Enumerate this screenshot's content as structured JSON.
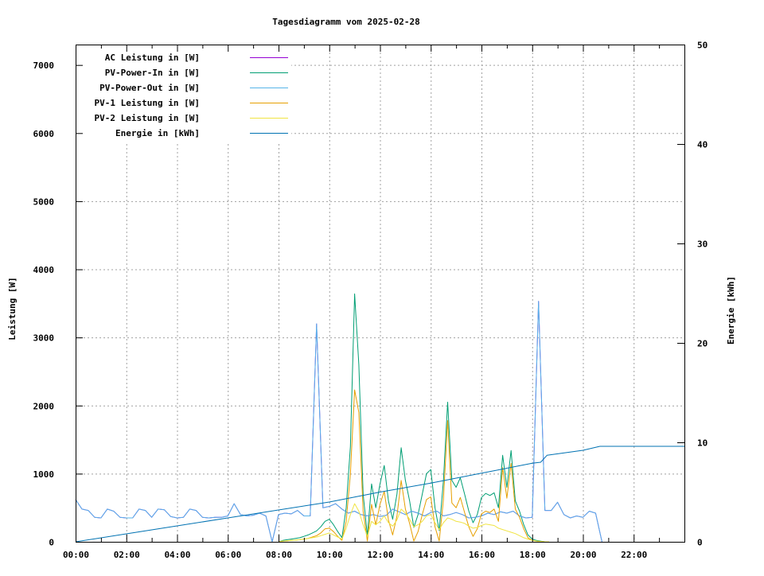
{
  "chart_data": {
    "type": "line",
    "title": "Tagesdiagramm vom 2025-02-28",
    "ylabel": "Leistung [W]",
    "y2label": "Energie [kWh]",
    "xlim": [
      "00:00",
      "24:00"
    ],
    "ylim": [
      0,
      7300
    ],
    "y2lim": [
      0,
      50
    ],
    "grid": true,
    "legend_placement": "top-left",
    "x_ticks": [
      "00:00",
      "02:00",
      "04:00",
      "06:00",
      "08:00",
      "10:00",
      "12:00",
      "14:00",
      "16:00",
      "18:00",
      "20:00",
      "22:00"
    ],
    "y_ticks": [
      0,
      1000,
      2000,
      3000,
      4000,
      5000,
      6000,
      7000
    ],
    "y2_ticks": [
      0,
      10,
      20,
      30,
      40,
      50
    ],
    "x_quarter": [
      "00:00",
      "00:15",
      "00:30",
      "00:45",
      "01:00",
      "01:15",
      "01:30",
      "01:45",
      "02:00",
      "02:15",
      "02:30",
      "02:45",
      "03:00",
      "03:15",
      "03:30",
      "03:45",
      "04:00",
      "04:15",
      "04:30",
      "04:45",
      "05:00",
      "05:15",
      "05:30",
      "05:45",
      "06:00",
      "06:15",
      "06:30",
      "06:45",
      "07:00",
      "07:15",
      "07:30",
      "07:45",
      "08:00",
      "08:15",
      "08:30",
      "08:45",
      "09:00",
      "09:15",
      "09:30",
      "09:45",
      "10:00",
      "10:15",
      "10:30",
      "10:45",
      "11:00",
      "11:15",
      "11:30",
      "11:45",
      "12:00",
      "12:15",
      "12:30",
      "12:45",
      "13:00",
      "13:15",
      "13:30",
      "13:45",
      "14:00",
      "14:15",
      "14:30",
      "14:45",
      "15:00",
      "15:15",
      "15:30",
      "15:45",
      "16:00",
      "16:15",
      "16:30",
      "16:45",
      "17:00",
      "17:15",
      "17:30",
      "17:45",
      "18:00",
      "18:15",
      "18:30",
      "18:45",
      "19:00",
      "19:15",
      "19:30",
      "19:45",
      "20:00",
      "20:15",
      "20:30",
      "20:45"
    ],
    "x_pv": [
      "08:00",
      "08:10",
      "08:20",
      "08:30",
      "08:40",
      "08:50",
      "09:00",
      "09:10",
      "09:20",
      "09:30",
      "09:40",
      "09:50",
      "10:00",
      "10:10",
      "10:20",
      "10:30",
      "10:40",
      "10:50",
      "11:00",
      "11:10",
      "11:20",
      "11:30",
      "11:40",
      "11:50",
      "12:00",
      "12:10",
      "12:20",
      "12:30",
      "12:40",
      "12:50",
      "13:00",
      "13:10",
      "13:20",
      "13:30",
      "13:40",
      "13:50",
      "14:00",
      "14:10",
      "14:20",
      "14:30",
      "14:40",
      "14:50",
      "15:00",
      "15:10",
      "15:20",
      "15:30",
      "15:40",
      "15:50",
      "16:00",
      "16:10",
      "16:20",
      "16:30",
      "16:40",
      "16:50",
      "17:00",
      "17:10",
      "17:20",
      "17:30",
      "17:40",
      "17:50",
      "18:00",
      "18:10",
      "18:20",
      "18:30",
      "18:40"
    ],
    "x_energy": [
      "00:00",
      "02:00",
      "04:00",
      "06:00",
      "08:00",
      "10:00",
      "12:00",
      "14:00",
      "16:00",
      "18:00",
      "18:20",
      "18:35",
      "20:00",
      "20:40",
      "24:00"
    ],
    "series": [
      {
        "name": "AC Leistung in [W]",
        "color": "#9400d3",
        "x_ref": "x_quarter",
        "axis": "y",
        "values": [
          620,
          480,
          460,
          360,
          350,
          480,
          450,
          360,
          350,
          350,
          480,
          460,
          360,
          480,
          470,
          370,
          350,
          360,
          480,
          460,
          360,
          350,
          360,
          360,
          380,
          560,
          400,
          380,
          390,
          420,
          380,
          0,
          400,
          420,
          410,
          460,
          380,
          380,
          3200,
          500,
          520,
          560,
          480,
          420,
          450,
          400,
          380,
          400,
          370,
          390,
          480,
          440,
          400,
          450,
          420,
          380,
          430,
          450,
          380,
          400,
          430,
          400,
          350,
          360,
          380,
          420,
          400,
          440,
          420,
          450,
          380,
          350,
          360,
          3530,
          460,
          460,
          580,
          400,
          350,
          380,
          360,
          450,
          420,
          0
        ]
      },
      {
        "name": "PV-Power-In in [W]",
        "color": "#009e73",
        "x_ref": "x_pv",
        "axis": "y",
        "values": [
          0,
          20,
          30,
          40,
          50,
          60,
          80,
          100,
          130,
          160,
          220,
          300,
          330,
          250,
          150,
          60,
          500,
          1400,
          3640,
          2600,
          700,
          90,
          850,
          500,
          850,
          1120,
          600,
          330,
          700,
          1380,
          900,
          600,
          210,
          400,
          700,
          1000,
          1060,
          500,
          165,
          900,
          2050,
          900,
          800,
          940,
          700,
          450,
          280,
          400,
          650,
          710,
          680,
          720,
          500,
          1270,
          800,
          1340,
          600,
          450,
          250,
          100,
          40,
          20,
          10,
          0,
          0
        ]
      },
      {
        "name": "PV-Power-Out in [W]",
        "color": "#56b4e9",
        "x_ref": "x_quarter",
        "axis": "y",
        "values": [
          620,
          480,
          460,
          360,
          350,
          480,
          450,
          360,
          350,
          350,
          480,
          460,
          360,
          480,
          470,
          370,
          350,
          360,
          480,
          460,
          360,
          350,
          360,
          360,
          380,
          560,
          400,
          380,
          390,
          420,
          380,
          0,
          400,
          420,
          410,
          460,
          380,
          380,
          3200,
          500,
          520,
          560,
          480,
          420,
          450,
          400,
          380,
          400,
          370,
          390,
          480,
          440,
          400,
          450,
          420,
          380,
          430,
          450,
          380,
          400,
          430,
          400,
          350,
          360,
          380,
          420,
          400,
          440,
          420,
          450,
          380,
          350,
          360,
          3530,
          460,
          460,
          580,
          400,
          350,
          380,
          360,
          450,
          420,
          0
        ]
      },
      {
        "name": "PV-1 Leistung in [W]",
        "color": "#e69f00",
        "x_ref": "x_pv",
        "axis": "y",
        "values": [
          0,
          10,
          15,
          20,
          25,
          30,
          40,
          50,
          70,
          90,
          130,
          190,
          200,
          150,
          80,
          20,
          300,
          1000,
          2230,
          1900,
          450,
          10,
          550,
          250,
          550,
          740,
          320,
          100,
          380,
          900,
          480,
          270,
          10,
          150,
          400,
          620,
          660,
          220,
          10,
          620,
          1780,
          570,
          500,
          650,
          430,
          220,
          80,
          190,
          410,
          450,
          430,
          480,
          300,
          1090,
          640,
          1150,
          480,
          360,
          190,
          60,
          20,
          10,
          5,
          0,
          0
        ]
      },
      {
        "name": "PV-2 Leistung in [W]",
        "color": "#f0e442",
        "x_ref": "x_pv",
        "axis": "y",
        "values": [
          0,
          10,
          15,
          20,
          25,
          30,
          40,
          50,
          60,
          70,
          90,
          110,
          130,
          100,
          70,
          40,
          200,
          400,
          560,
          450,
          250,
          80,
          300,
          250,
          300,
          380,
          280,
          230,
          320,
          480,
          420,
          330,
          220,
          250,
          300,
          380,
          400,
          280,
          180,
          280,
          350,
          330,
          300,
          290,
          270,
          230,
          200,
          210,
          240,
          260,
          250,
          240,
          200,
          180,
          160,
          140,
          120,
          90,
          60,
          40,
          20,
          10,
          5,
          0,
          0
        ]
      },
      {
        "name": "Energie in [kWh]",
        "color": "#0072b2",
        "x_ref": "x_energy",
        "axis": "y2",
        "values": [
          0,
          0.8,
          1.6,
          2.4,
          3.2,
          4.0,
          5.0,
          5.9,
          6.9,
          7.9,
          8.0,
          8.7,
          9.2,
          9.6,
          9.6
        ]
      }
    ]
  }
}
